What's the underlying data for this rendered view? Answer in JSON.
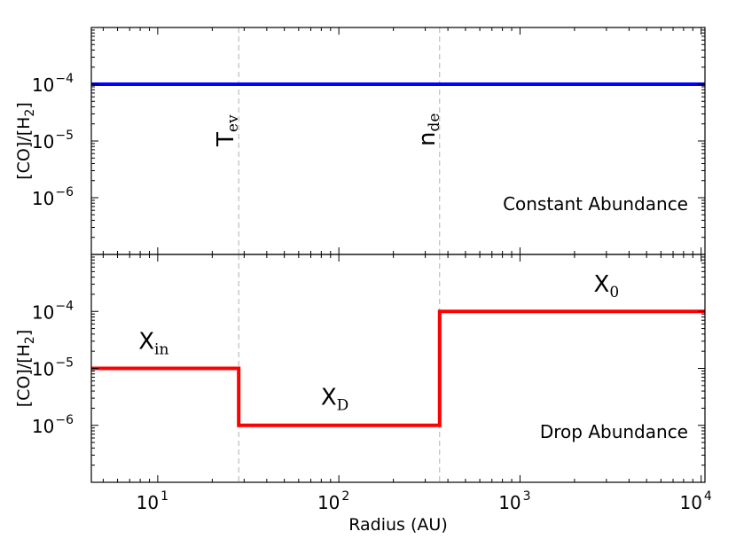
{
  "chart_data": [
    {
      "type": "line",
      "panel": "top",
      "xscale": "log",
      "yscale": "log",
      "xlim": [
        4.3,
        10500
      ],
      "ylim": [
        1e-07,
        0.001
      ],
      "ylabel": "[CO]/[H2]",
      "panel_label": "Constant Abundance",
      "color": "#0000ff",
      "series": [
        {
          "x": [
            4.3,
            10500
          ],
          "y": [
            0.0001,
            0.0001
          ]
        }
      ],
      "vlines": [
        {
          "x": 28,
          "label": "T",
          "sub": "ev"
        },
        {
          "x": 360,
          "label": "n",
          "sub": "de"
        }
      ],
      "yticks": [
        {
          "value": 0.0001,
          "base": "10",
          "exp": "-4"
        },
        {
          "value": 1e-05,
          "base": "10",
          "exp": "-5"
        },
        {
          "value": 1e-06,
          "base": "10",
          "exp": "-6"
        }
      ]
    },
    {
      "type": "line",
      "panel": "bottom",
      "xscale": "log",
      "yscale": "log",
      "xlim": [
        4.3,
        10500
      ],
      "ylim": [
        1e-07,
        0.001
      ],
      "xlabel": "Radius (AU)",
      "ylabel": "[CO]/[H2]",
      "panel_label": "Drop Abundance",
      "color": "#ff0000",
      "series": [
        {
          "x": [
            4.3,
            28,
            28,
            360,
            360,
            10500
          ],
          "y": [
            1e-05,
            1e-05,
            1e-06,
            1e-06,
            0.0001,
            0.0001
          ]
        }
      ],
      "vlines": [
        {
          "x": 28
        },
        {
          "x": 360
        }
      ],
      "annotations": [
        {
          "label": "X",
          "sub": "in",
          "x": 9.5,
          "y": 2.2e-05
        },
        {
          "label": "X",
          "sub": "D",
          "x": 95,
          "y": 2.3e-06
        },
        {
          "label": "X",
          "sub": "0",
          "x": 3000,
          "y": 0.00022
        }
      ],
      "yticks": [
        {
          "value": 0.0001,
          "base": "10",
          "exp": "-4"
        },
        {
          "value": 1e-05,
          "base": "10",
          "exp": "-5"
        },
        {
          "value": 1e-06,
          "base": "10",
          "exp": "-6"
        }
      ],
      "xticks": [
        {
          "value": 10,
          "base": "10",
          "exp": "1"
        },
        {
          "value": 100,
          "base": "10",
          "exp": "2"
        },
        {
          "value": 1000,
          "base": "10",
          "exp": "3"
        },
        {
          "value": 10000,
          "base": "10",
          "exp": "4"
        }
      ]
    }
  ],
  "colors": {
    "vline": "#b0b0b0",
    "axes": "#000000"
  }
}
